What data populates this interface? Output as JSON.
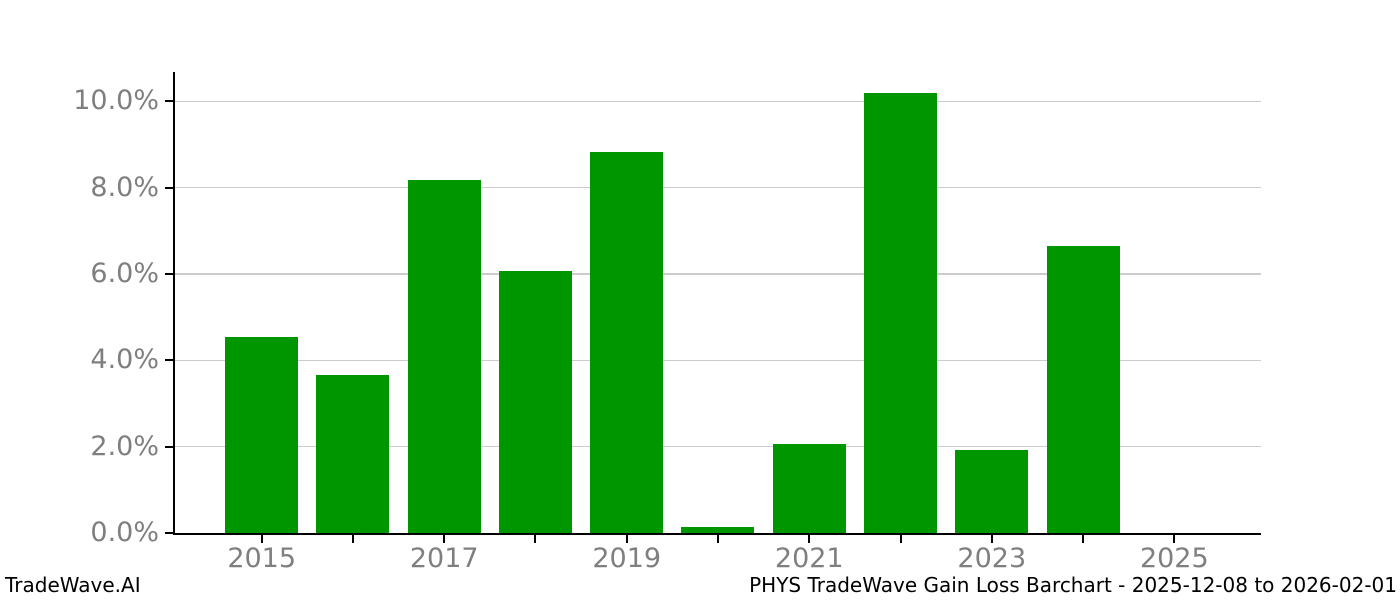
{
  "chart_data": {
    "type": "bar",
    "title": "PHYS TradeWave Gain Loss Barchart - 2025-12-08 to 2026-02-01",
    "categories": [
      2015,
      2016,
      2017,
      2018,
      2019,
      2020,
      2021,
      2022,
      2023,
      2024,
      2025
    ],
    "values": [
      4.53,
      3.65,
      8.17,
      6.08,
      8.83,
      0.13,
      2.07,
      10.19,
      1.93,
      6.66,
      0.0
    ],
    "xlabel": "",
    "ylabel": "",
    "ylim": [
      0,
      10.68
    ],
    "xlim": [
      2014.05,
      2025.95
    ],
    "grid": true,
    "legend": false,
    "y_tick_values": [
      0,
      2,
      4,
      6,
      8,
      10
    ],
    "y_tick_labels": [
      "0.0%",
      "2.0%",
      "4.0%",
      "6.0%",
      "8.0%",
      "10.0%"
    ],
    "x_tick_years": [
      2015,
      2016,
      2017,
      2018,
      2019,
      2020,
      2021,
      2022,
      2023,
      2024,
      2025
    ],
    "x_tick_label_years": [
      2015,
      2017,
      2019,
      2021,
      2023,
      2025
    ],
    "bar_width_years": 0.8,
    "colors": {
      "bar": "#009600",
      "gridline": "#cccccc",
      "axis": "#000000",
      "tick_label": "#7f7f7f",
      "background": "#ffffff"
    }
  },
  "footer": {
    "brand_label": "TradeWave.AI"
  }
}
